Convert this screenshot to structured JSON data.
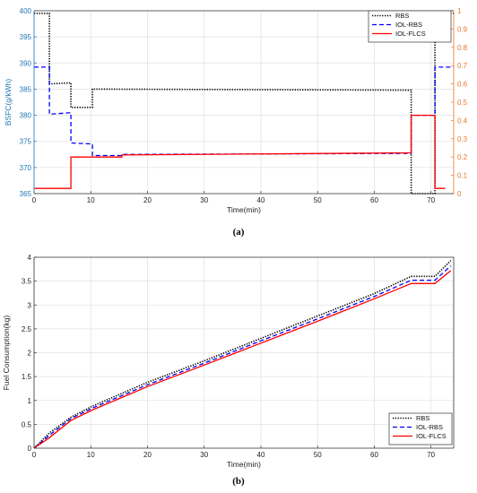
{
  "captions": {
    "a": "(a)",
    "b": "(b)"
  },
  "chart_data": [
    {
      "type": "line",
      "panel": "(a)",
      "xlabel": "Time(min)",
      "ylabel": "BSFC(g/kWh)",
      "xlim": [
        0,
        74
      ],
      "ylim": [
        365,
        400
      ],
      "y2lim": [
        0,
        1
      ],
      "xticks": [
        "0",
        "10",
        "20",
        "30",
        "40",
        "50",
        "60",
        "70"
      ],
      "yticks": [
        "365",
        "370",
        "375",
        "380",
        "385",
        "390",
        "395",
        "400"
      ],
      "y2ticks": [
        "0",
        "0.1",
        "0.2",
        "0.3",
        "0.4",
        "0.5",
        "0.6",
        "0.7",
        "0.8",
        "0.9",
        "1"
      ],
      "grid": true,
      "legend_position": "top-right",
      "colors": {
        "left_axis": "#1f77b4",
        "right_axis": "#e8742b",
        "RBS": "#000000",
        "IOL-RBS": "#0000ff",
        "IOL-FLCS": "#ff0000"
      },
      "series": [
        {
          "name": "RBS",
          "style": "dotted",
          "x": [
            0,
            2.7,
            2.7,
            6.5,
            6.5,
            10.3,
            10.3,
            66.5,
            66.5,
            70.7,
            70.7,
            74
          ],
          "y": [
            399.5,
            399.5,
            386.0,
            386.2,
            381.5,
            381.5,
            385.0,
            384.8,
            365.0,
            365.0,
            399.5,
            399.5
          ]
        },
        {
          "name": "IOL-RBS",
          "style": "dashed",
          "x": [
            0,
            2.7,
            2.7,
            6.5,
            6.5,
            10.3,
            10.3,
            15.5,
            15.5,
            66.5,
            66.5,
            70.7,
            70.7,
            74
          ],
          "y": [
            389.2,
            389.2,
            380.2,
            380.5,
            374.7,
            374.5,
            372.3,
            372.3,
            372.5,
            372.7,
            380.0,
            380.0,
            389.2,
            389.2
          ]
        },
        {
          "name": "IOL-FLCS",
          "style": "solid",
          "x": [
            0,
            6.5,
            6.5,
            15.5,
            15.5,
            66.5,
            66.5,
            70.7,
            70.7,
            72.5
          ],
          "y": [
            366.0,
            366.0,
            372.0,
            372.0,
            372.4,
            372.8,
            380.0,
            380.0,
            366.0,
            366.0
          ]
        }
      ]
    },
    {
      "type": "line",
      "panel": "(b)",
      "xlabel": "Time(min)",
      "ylabel": "Fuel Consumption(kg)",
      "xlim": [
        0,
        74
      ],
      "ylim": [
        0,
        4
      ],
      "xticks": [
        "0",
        "10",
        "20",
        "30",
        "40",
        "50",
        "60",
        "70"
      ],
      "yticks": [
        "0",
        "0.5",
        "1",
        "1.5",
        "2",
        "2.5",
        "3",
        "3.5",
        "4"
      ],
      "grid": true,
      "legend_position": "bottom-right",
      "colors": {
        "RBS": "#000000",
        "IOL-RBS": "#0000ff",
        "IOL-FLCS": "#ff0000"
      },
      "series": [
        {
          "name": "RBS",
          "style": "dotted",
          "x": [
            0,
            2.7,
            6.5,
            10.3,
            20,
            30,
            40,
            50,
            60,
            66.5,
            70.7,
            73.5
          ],
          "y": [
            0,
            0.32,
            0.65,
            0.88,
            1.38,
            1.83,
            2.3,
            2.77,
            3.24,
            3.6,
            3.6,
            3.93
          ]
        },
        {
          "name": "IOL-RBS",
          "style": "dashed",
          "x": [
            0,
            2.7,
            6.5,
            10.3,
            20,
            30,
            40,
            50,
            60,
            66.5,
            70.7,
            73.5
          ],
          "y": [
            0,
            0.27,
            0.62,
            0.84,
            1.33,
            1.78,
            2.25,
            2.71,
            3.18,
            3.52,
            3.52,
            3.82
          ]
        },
        {
          "name": "IOL-FLCS",
          "style": "solid",
          "x": [
            0,
            2.7,
            6.5,
            10.3,
            20,
            30,
            40,
            50,
            60,
            66.5,
            70.7,
            73.5
          ],
          "y": [
            0,
            0.22,
            0.58,
            0.8,
            1.29,
            1.74,
            2.2,
            2.66,
            3.13,
            3.45,
            3.45,
            3.72
          ]
        }
      ]
    }
  ]
}
